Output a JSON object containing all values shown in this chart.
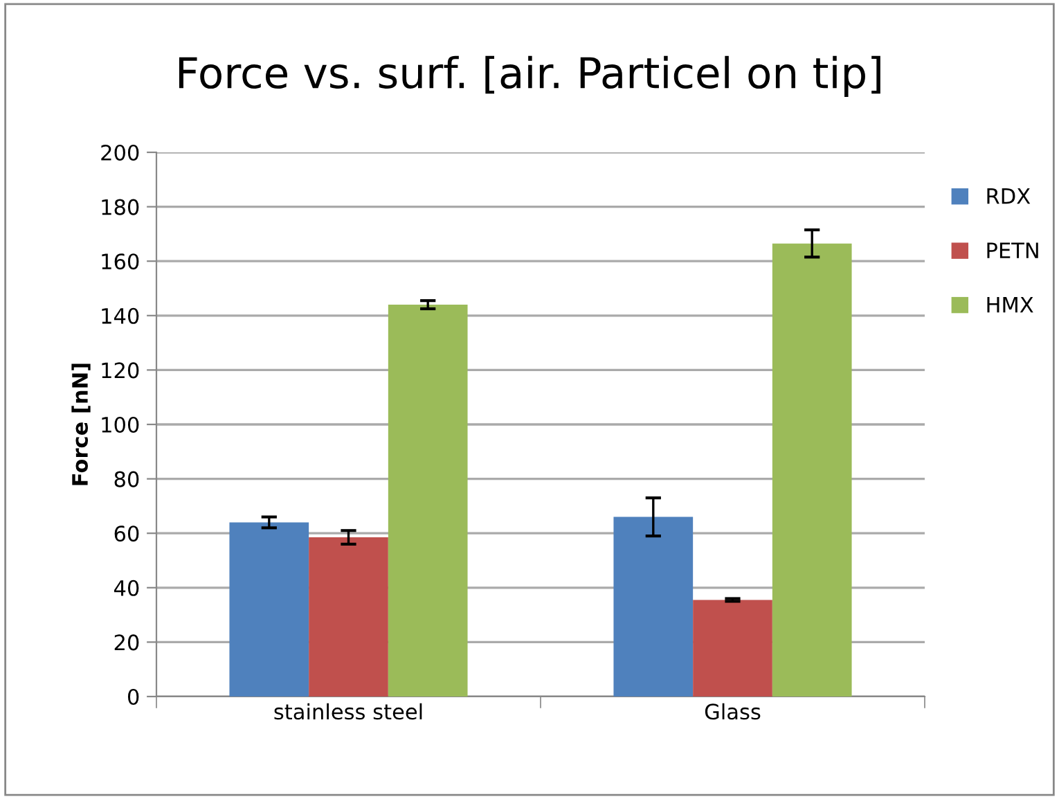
{
  "chart_data": {
    "type": "bar",
    "title": "Force vs. surf. [air. Particel on tip]",
    "ylabel": "Force [nN]",
    "categories": [
      "stainless steel",
      "Glass"
    ],
    "series": [
      {
        "name": "RDX",
        "color": "#4f81bd",
        "values": [
          64,
          66
        ],
        "errors": [
          2,
          7
        ]
      },
      {
        "name": "PETN",
        "color": "#c0504d",
        "values": [
          58.5,
          35.5
        ],
        "errors": [
          2.5,
          0.5
        ]
      },
      {
        "name": "HMX",
        "color": "#9bbb59",
        "values": [
          144,
          166.5
        ],
        "errors": [
          1.5,
          5
        ]
      }
    ],
    "ylim": [
      0,
      200
    ],
    "yticks": [
      0,
      20,
      40,
      60,
      80,
      100,
      120,
      140,
      160,
      180,
      200
    ],
    "grid": "y",
    "legend": "top right"
  }
}
